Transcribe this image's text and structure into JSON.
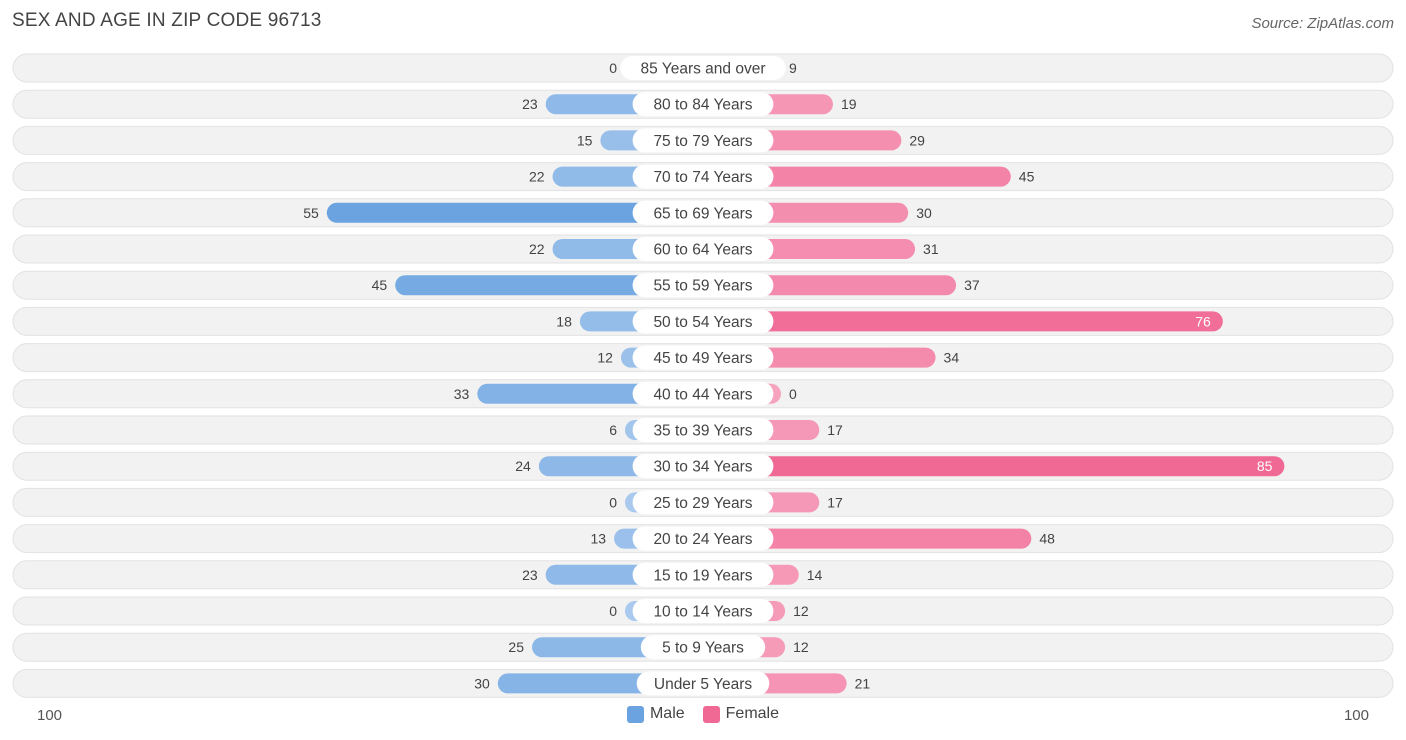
{
  "title": "SEX AND AGE IN ZIP CODE 96713",
  "source": "Source: ZipAtlas.com",
  "axis": {
    "left_label": "100",
    "right_label": "100"
  },
  "legend": {
    "male_label": "Male",
    "female_label": "Female"
  },
  "colors": {
    "male_dark": "#6aa3e0",
    "male_light": "#a9c9ee",
    "female_dark": "#f06894",
    "female_light": "#f6a3be",
    "row_bg": "#f2f2f2"
  },
  "chart_data": {
    "type": "bar",
    "orientation": "horizontal-diverging",
    "xlim": [
      -100,
      100
    ],
    "categories": [
      "85 Years and over",
      "80 to 84 Years",
      "75 to 79 Years",
      "70 to 74 Years",
      "65 to 69 Years",
      "60 to 64 Years",
      "55 to 59 Years",
      "50 to 54 Years",
      "45 to 49 Years",
      "40 to 44 Years",
      "35 to 39 Years",
      "30 to 34 Years",
      "25 to 29 Years",
      "20 to 24 Years",
      "15 to 19 Years",
      "10 to 14 Years",
      "5 to 9 Years",
      "Under 5 Years"
    ],
    "series": [
      {
        "name": "Male",
        "values": [
          0,
          23,
          15,
          22,
          55,
          22,
          45,
          18,
          12,
          33,
          6,
          24,
          0,
          13,
          23,
          0,
          25,
          30
        ]
      },
      {
        "name": "Female",
        "values": [
          9,
          19,
          29,
          45,
          30,
          31,
          37,
          76,
          34,
          0,
          17,
          85,
          17,
          48,
          14,
          12,
          12,
          21
        ]
      }
    ]
  }
}
